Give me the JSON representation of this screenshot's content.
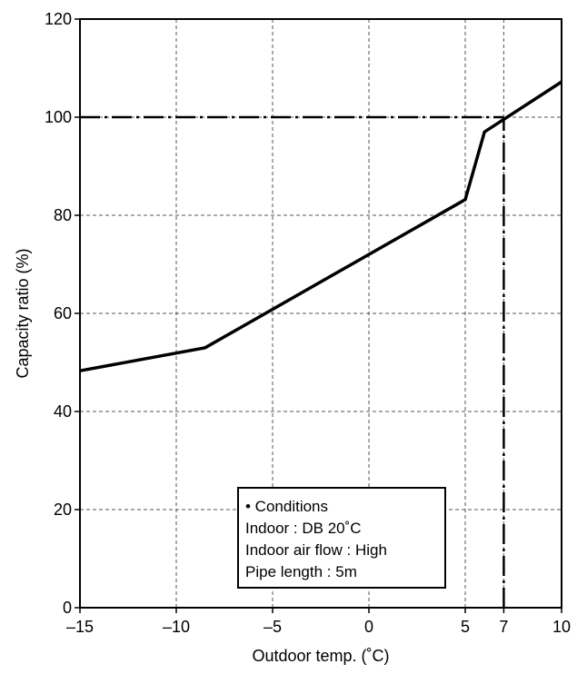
{
  "chart_data": {
    "type": "line",
    "title": "",
    "xlabel": "Outdoor temp. (˚C)",
    "ylabel": "Capacity ratio (%)",
    "xlim": [
      -15,
      10
    ],
    "ylim": [
      0,
      120
    ],
    "grid": true,
    "x_ticks": [
      -15,
      -10,
      -5,
      0,
      5,
      7,
      10
    ],
    "x_tick_labels": [
      "–15",
      "–10",
      "–5",
      "0",
      "5",
      "7",
      "10"
    ],
    "y_ticks": [
      0,
      20,
      40,
      60,
      80,
      100,
      120
    ],
    "y_tick_labels": [
      "0",
      "20",
      "40",
      "60",
      "80",
      "100",
      "120"
    ],
    "series": [
      {
        "x": [
          -15,
          -8.5,
          5,
          6,
          10
        ],
        "y": [
          48.3,
          53,
          83.2,
          97,
          107.2
        ],
        "color": "#000000",
        "style": "solid"
      }
    ],
    "reference_lines": [
      {
        "orientation": "horizontal",
        "value": 100,
        "from": -15,
        "to": 7,
        "style": "dash-dot"
      },
      {
        "orientation": "vertical",
        "value": 7,
        "from": 0,
        "to": 100,
        "style": "dash-dot"
      }
    ],
    "annotation": {
      "lines": [
        "• Conditions",
        "Indoor : DB 20˚C",
        "Indoor air flow : High",
        "Pipe length : 5m"
      ]
    }
  }
}
